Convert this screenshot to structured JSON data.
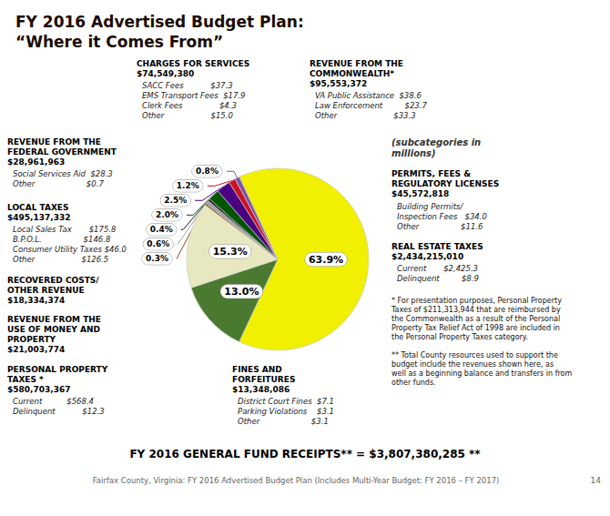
{
  "chart_data": {
    "type": "pie",
    "title": "FY 2016 Advertised Budget Plan:\n“Where it Comes From”",
    "values": [
      63.9,
      13.0,
      15.3,
      0.3,
      0.6,
      0.4,
      2.0,
      2.5,
      1.2,
      0.8
    ],
    "value_labels": [
      "63.9%",
      "13.0%",
      "15.3%",
      "0.3%",
      "0.6%",
      "0.4%",
      "2.0%",
      "2.5%",
      "1.2%",
      "0.8%"
    ],
    "colors": [
      "#f0f000",
      "#4a7a30",
      "#e8e8c0",
      "#8b4513",
      "#a0a0a0",
      "#1a1a1a",
      "#005500",
      "#4b0082",
      "#cc1122",
      "#7b52ab"
    ],
    "data_labels": true,
    "annotations": [
      "(subcategories in\nmillions)",
      "PERMITS, FEES &\nREGULATORY LICENSES\n$45,572,818",
      "Building Permits/\nInspection Fees   $34.0\nOther                 $11.6",
      "REAL ESTATE TAXES\n$2,434,215,010",
      "Current       $2,425.3\nDelinquent         $8.9",
      "* For presentation purposes, Personal Property\nTaxes of $211,313,944 that are reimbursed by\nthe Commonwealth as a result of the Personal\nProperty Tax Relief Act of 1998 are included in\nthe Personal Property Taxes category.",
      "** Total County resources used to support the\nbudget include the revenues shown here, as\nwell as a beginning balance and transfers in from\nother funds.",
      "REVENUE FROM THE\nFEDERAL GOVERNMENT\n$28,961,963",
      "Social Services Aid  $28.3\nOther                     $0.7",
      "LOCAL TAXES\n$495,137,332",
      "Local Sales Tax       $175.8\nB.P.O.L.                 $146.8\nConsumer Utility Taxes $46.0\nOther                   $126.5",
      "RECOVERED COSTS/\nOTHER REVENUE\n$18,334,374",
      "REVENUE FROM THE\nUSE OF MONEY AND\nPROPERTY\n$21,003,774",
      "PERSONAL PROPERTY\nTAXES *\n$580,703,367",
      "Current          $568.4\nDelinquent           $12.3",
      "CHARGES FOR SERVICES\n$74,549,380",
      "SACC Fees           $37.3\nEMS Transport Fees  $17.9\nClerk Fees               $4.3\nOther                   $15.0",
      "REVENUE FROM THE\nCOMMONWEALTH*\n$95,553,372",
      "VA Public Assistance  $38.6\nLaw Enforcement         $23.7\nOther                       $33.3",
      "FINES AND\nFORFEITURES\n$13,348,086",
      "District Court Fines  $7.1\nParking Violations    $3.1\nOther                     $3.1",
      "FY 2016 GENERAL FUND RECEIPTS** = $3,807,380,285 **",
      "Fairfax County, Virginia: FY 2016 Advertised Budget Plan (Includes Multi-Year Budget: FY 2016 – FY 2017)",
      "14"
    ]
  }
}
